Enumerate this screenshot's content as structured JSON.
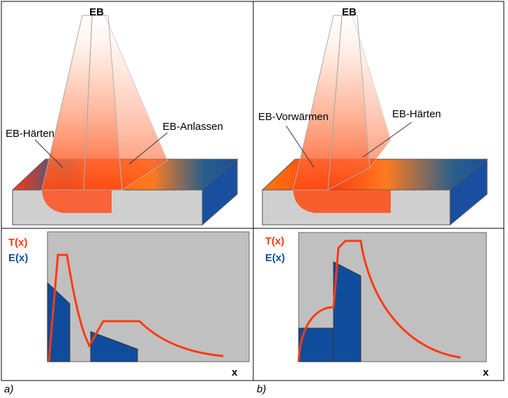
{
  "panels": [
    {
      "beam_label": "EB",
      "left_label": "EB-Härten",
      "right_label": "EB-Anlassen",
      "curve_label_t": "T(x)",
      "curve_label_e": "E(x)",
      "axis_label": "x",
      "caption": "a)"
    },
    {
      "beam_label": "EB",
      "left_label": "EB-Vorwärmen",
      "right_label": "EB-Härten",
      "curve_label_t": "T(x)",
      "curve_label_e": "E(x)",
      "axis_label": "x",
      "caption": "b)"
    }
  ]
}
